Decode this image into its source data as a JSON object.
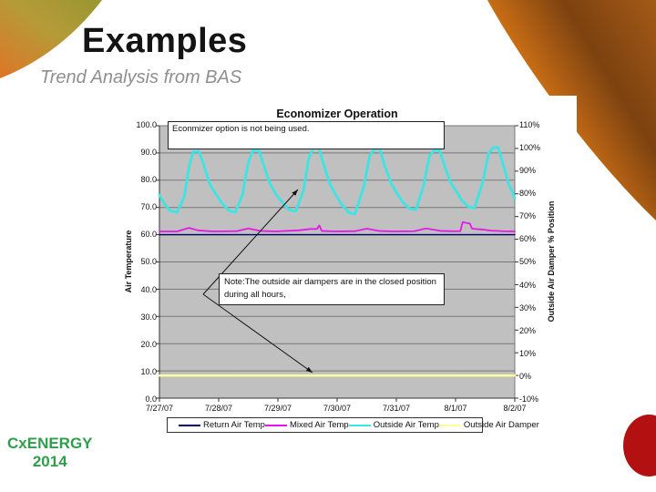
{
  "slide": {
    "title": "Examples",
    "subtitle": "Trend Analysis from BAS",
    "footer_line1": "CxENERGY",
    "footer_line2": "2014",
    "colors": {
      "footer_green": "#2f9e4c",
      "title": "#141414",
      "subtitle": "#8f8f8f"
    }
  },
  "decor": {
    "top_left": [
      "#98962f",
      "#b59b38",
      "#df7526"
    ],
    "top_right": [
      "#f08318",
      "#7c4210",
      "#a45a16"
    ],
    "circle": "#b31111"
  },
  "chart_data": {
    "type": "line",
    "title": "Economizer Operation",
    "plot_bg": "#c0c0c0",
    "grid_color": "#787878",
    "axis_color": "#333333",
    "left_axis": {
      "label": "Air Temperature",
      "min": 0,
      "max": 100,
      "ticks": [
        "100.0",
        "90.0",
        "80.0",
        "70.0",
        "60.0",
        "50.0",
        "40.0",
        "30.0",
        "20.0",
        "10.0",
        "0.0"
      ]
    },
    "right_axis": {
      "label": "Outside Air Damper % Position",
      "min": -10,
      "max": 110,
      "ticks": [
        "110%",
        "100%",
        "90%",
        "80%",
        "70%",
        "60%",
        "50%",
        "40%",
        "30%",
        "20%",
        "10%",
        "0%",
        "-10%"
      ]
    },
    "x_axis": {
      "labels": [
        "7/27/07",
        "7/28/07",
        "7/29/07",
        "7/30/07",
        "7/31/07",
        "8/1/07",
        "8/2/07"
      ],
      "min_day": 0,
      "max_day": 6
    },
    "annotations": [
      {
        "text": "Econmizer option is not being used."
      },
      {
        "text": "Note:The outside air dampers are in the closed position during all hours,"
      }
    ],
    "arrows": [
      {
        "from": [
          48,
          185
        ],
        "to": [
          152,
          70
        ]
      },
      {
        "from": [
          48,
          185
        ],
        "to": [
          168,
          271
        ]
      }
    ],
    "series": [
      {
        "name": "Return Air Temp",
        "color": "#000066",
        "axis": "left",
        "width": 1.4,
        "points": [
          [
            0,
            60
          ],
          [
            6,
            60
          ]
        ]
      },
      {
        "name": "Mixed Air Temp",
        "color": "#e816e8",
        "axis": "left",
        "width": 1.8,
        "points": [
          [
            0,
            61.2
          ],
          [
            0.3,
            61.2
          ],
          [
            0.5,
            62.5
          ],
          [
            0.65,
            61.6
          ],
          [
            0.9,
            61.2
          ],
          [
            1.3,
            61.3
          ],
          [
            1.5,
            62.3
          ],
          [
            1.7,
            61.4
          ],
          [
            1.95,
            61.2
          ],
          [
            2.35,
            61.6
          ],
          [
            2.55,
            62.1
          ],
          [
            2.66,
            62.1
          ],
          [
            2.7,
            63.4
          ],
          [
            2.74,
            61.4
          ],
          [
            2.95,
            61.2
          ],
          [
            3.3,
            61.3
          ],
          [
            3.5,
            62.2
          ],
          [
            3.7,
            61.4
          ],
          [
            3.95,
            61.2
          ],
          [
            4.3,
            61.3
          ],
          [
            4.5,
            62.3
          ],
          [
            4.75,
            61.4
          ],
          [
            4.95,
            61.3
          ],
          [
            5.08,
            61.3
          ],
          [
            5.12,
            64.6
          ],
          [
            5.24,
            64.1
          ],
          [
            5.28,
            62.2
          ],
          [
            5.45,
            61.9
          ],
          [
            5.6,
            61.5
          ],
          [
            5.8,
            61.3
          ],
          [
            6,
            61.2
          ]
        ]
      },
      {
        "name": "Outside Air Temp",
        "color": "#3ce4e4",
        "axis": "left",
        "width": 2.8,
        "points": [
          [
            0,
            74.5
          ],
          [
            0.08,
            71.5
          ],
          [
            0.18,
            68.8
          ],
          [
            0.3,
            68.2
          ],
          [
            0.42,
            74
          ],
          [
            0.5,
            85
          ],
          [
            0.57,
            90.5
          ],
          [
            0.67,
            90.5
          ],
          [
            0.75,
            85.5
          ],
          [
            0.85,
            78.5
          ],
          [
            0.95,
            75
          ],
          [
            1.05,
            71.8
          ],
          [
            1.16,
            69
          ],
          [
            1.28,
            68.2
          ],
          [
            1.4,
            74.5
          ],
          [
            1.5,
            86.5
          ],
          [
            1.58,
            91
          ],
          [
            1.68,
            91
          ],
          [
            1.76,
            85.5
          ],
          [
            1.87,
            78.5
          ],
          [
            1.97,
            74.8
          ],
          [
            2.07,
            72
          ],
          [
            2.18,
            69.2
          ],
          [
            2.3,
            68.6
          ],
          [
            2.43,
            76
          ],
          [
            2.52,
            88
          ],
          [
            2.6,
            92
          ],
          [
            2.69,
            92
          ],
          [
            2.77,
            86
          ],
          [
            2.88,
            78.5
          ],
          [
            2.98,
            74.5
          ],
          [
            3.08,
            71
          ],
          [
            3.2,
            68
          ],
          [
            3.3,
            67.6
          ],
          [
            3.45,
            77.5
          ],
          [
            3.55,
            89
          ],
          [
            3.63,
            91.5
          ],
          [
            3.72,
            91.5
          ],
          [
            3.8,
            85.5
          ],
          [
            3.91,
            79
          ],
          [
            4.0,
            75.5
          ],
          [
            4.1,
            72.2
          ],
          [
            4.22,
            69.6
          ],
          [
            4.33,
            69.2
          ],
          [
            4.46,
            78
          ],
          [
            4.56,
            89
          ],
          [
            4.64,
            91
          ],
          [
            4.73,
            91
          ],
          [
            4.81,
            85.5
          ],
          [
            4.92,
            79
          ],
          [
            5.01,
            76
          ],
          [
            5.1,
            72.8
          ],
          [
            5.22,
            70.2
          ],
          [
            5.32,
            69.8
          ],
          [
            5.46,
            79.5
          ],
          [
            5.56,
            90
          ],
          [
            5.64,
            92
          ],
          [
            5.72,
            92
          ],
          [
            5.8,
            86
          ],
          [
            5.9,
            78.5
          ],
          [
            6,
            73.5
          ]
        ]
      },
      {
        "name": "Outside Air Damper",
        "color": "#ffff99",
        "axis": "right",
        "width": 2.5,
        "points": [
          [
            0,
            0
          ],
          [
            6,
            0
          ]
        ]
      }
    ]
  }
}
